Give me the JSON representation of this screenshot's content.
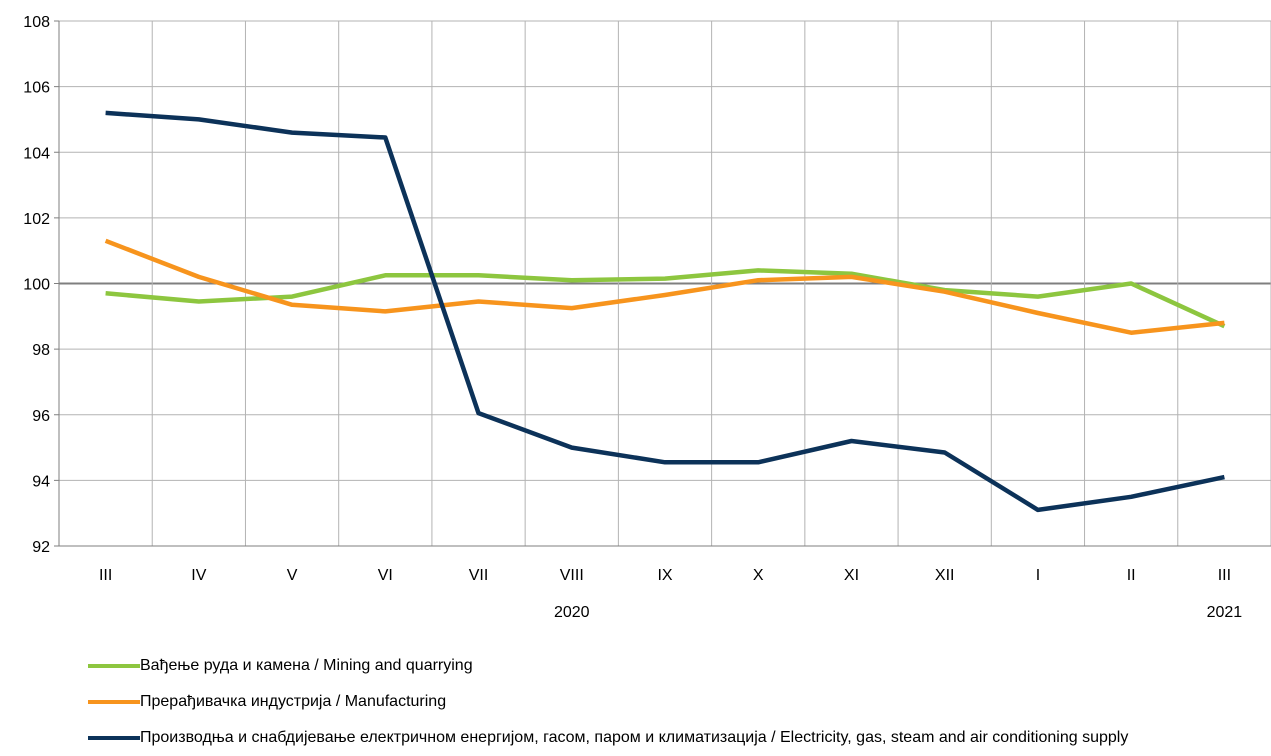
{
  "chart_data": {
    "type": "line",
    "categories": [
      "III",
      "IV",
      "V",
      "VI",
      "VII",
      "VIII",
      "IX",
      "X",
      "XI",
      "XII",
      "I",
      "II",
      "III"
    ],
    "year_labels": [
      {
        "label": "2020",
        "category_index": 5
      },
      {
        "label": "2021",
        "category_index": 12
      }
    ],
    "ylim": [
      92,
      108
    ],
    "yticks": [
      92,
      94,
      96,
      98,
      100,
      102,
      104,
      106,
      108
    ],
    "reference_line": 100,
    "grid": true,
    "legend_position": "bottom-left",
    "series": [
      {
        "name": "Вађење руда и камена / Mining and quarrying",
        "color": "#8dc63f",
        "values": [
          99.7,
          99.45,
          99.6,
          100.25,
          100.25,
          100.1,
          100.15,
          100.4,
          100.3,
          99.8,
          99.6,
          100.0,
          98.7
        ]
      },
      {
        "name": "Прерађивачка индустрија / Manufacturing",
        "color": "#f7941d",
        "values": [
          101.3,
          100.2,
          99.35,
          99.15,
          99.45,
          99.25,
          99.65,
          100.1,
          100.2,
          99.75,
          99.1,
          98.5,
          98.8
        ]
      },
      {
        "name": "Производња и снабдијевање електричном енергијом, гасом, паром и климатизација / Electricity, gas, steam and air conditioning supply",
        "color": "#0c3259",
        "values": [
          105.2,
          105.0,
          104.6,
          104.45,
          96.05,
          95.0,
          94.55,
          94.55,
          95.2,
          94.85,
          93.1,
          93.5,
          94.1
        ]
      }
    ]
  }
}
